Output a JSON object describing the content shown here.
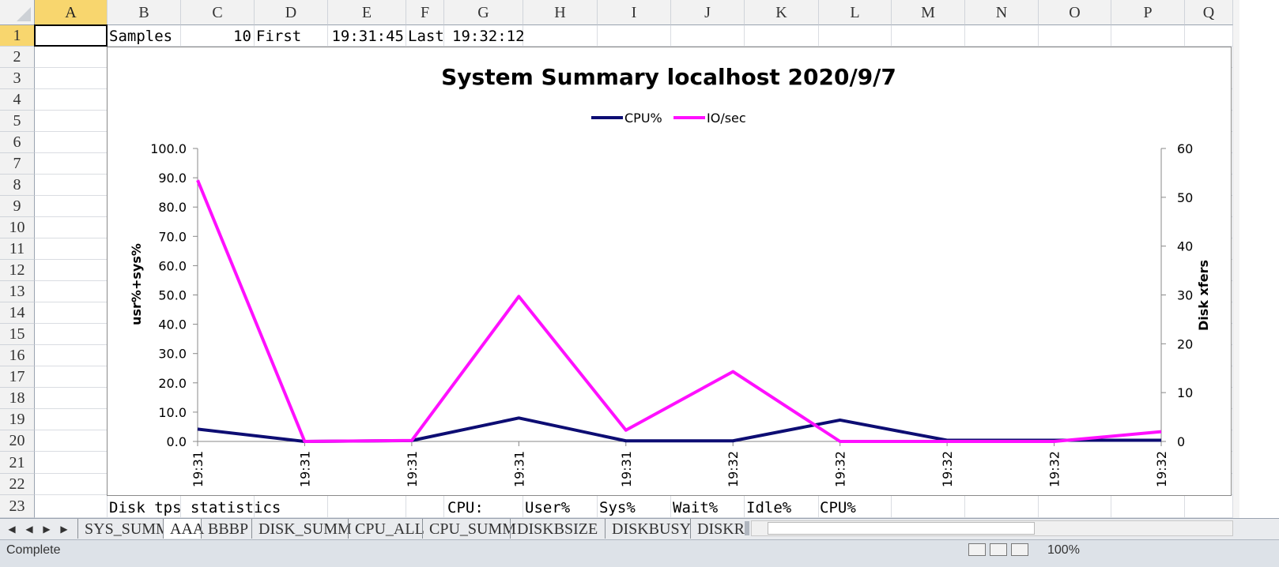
{
  "sheet": {
    "columns": [
      "A",
      "B",
      "C",
      "D",
      "E",
      "F",
      "G",
      "H",
      "I",
      "J",
      "K",
      "L",
      "M",
      "N",
      "O",
      "P",
      "Q"
    ],
    "rows": [
      "1",
      "2",
      "3",
      "4",
      "5",
      "6",
      "7",
      "8",
      "9",
      "10",
      "11",
      "12",
      "13",
      "14",
      "15",
      "16",
      "17",
      "18",
      "19",
      "20",
      "21",
      "22",
      "23"
    ],
    "row1": {
      "b": "Samples",
      "c": "10",
      "d": "First",
      "e": "19:31:45",
      "f": "Last",
      "g": "19:32:12"
    },
    "row23": {
      "b": "Disk tps statistics",
      "g": "CPU:",
      "h": "User%",
      "i": "Sys%",
      "j": "Wait%",
      "k": "Idle%",
      "l": "CPU%"
    }
  },
  "tabs": [
    "SYS_SUMM",
    "AAA",
    "BBBP",
    "DISK_SUMM",
    "CPU_ALL",
    "CPU_SUMM",
    "DISKBSIZE",
    "DISKBUSY",
    "DISKR"
  ],
  "active_tab": "AAA",
  "status": "Complete",
  "zoom": "100%",
  "colors": {
    "cpu": "#0d0d73",
    "io": "#ff10ff",
    "selected_header": "#f8d66e"
  },
  "chart_data": {
    "type": "line",
    "title": "System Summary localhost  2020/9/7",
    "x": [
      "19:31",
      "19:31",
      "19:31",
      "19:31",
      "19:31",
      "19:32",
      "19:32",
      "19:32",
      "19:32",
      "19:32"
    ],
    "series": [
      {
        "name": "CPU%",
        "axis": "left",
        "values": [
          4.2,
          0.0,
          0.3,
          8.0,
          0.2,
          0.2,
          7.3,
          0.4,
          0.4,
          0.4
        ]
      },
      {
        "name": "IO/sec",
        "axis": "right",
        "values": [
          53.5,
          0.0,
          0.2,
          29.7,
          2.3,
          14.3,
          0.0,
          0.0,
          0.0,
          2.0
        ]
      }
    ],
    "ylabel": "usr%+sys%",
    "y2label": "Disk xfers",
    "ylim": [
      0,
      100
    ],
    "y2lim": [
      0,
      60
    ],
    "yticks": [
      "0.0",
      "10.0",
      "20.0",
      "30.0",
      "40.0",
      "50.0",
      "60.0",
      "70.0",
      "80.0",
      "90.0",
      "100.0"
    ],
    "y2ticks": [
      "0",
      "10",
      "20",
      "30",
      "40",
      "50",
      "60"
    ],
    "legend": "top-center",
    "grid": false
  }
}
